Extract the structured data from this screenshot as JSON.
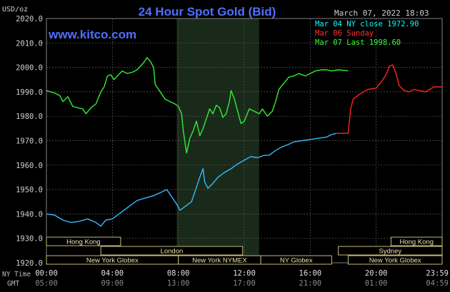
{
  "chart_data": {
    "type": "line",
    "title": "24 Hour Spot Gold (Bid)",
    "unit_label": "USD/oz",
    "date_label": "March 07, 2022 18:03",
    "watermark": "www.kitco.com",
    "ylim": [
      1920,
      2020
    ],
    "yticks": [
      "2020.0",
      "2010.0",
      "2000.0",
      "1990.0",
      "1980.0",
      "1970.0",
      "1960.0",
      "1950.0",
      "1940.0",
      "1930.0",
      "1920.0"
    ],
    "x_range_hours": [
      0,
      24
    ],
    "ny_time_label": "NY Time",
    "gmt_label": "GMT",
    "ny_time_ticks": [
      "00:00",
      "04:00",
      "08:00",
      "12:00",
      "16:00",
      "20:00",
      "23:59"
    ],
    "gmt_ticks": [
      "05:00",
      "09:00",
      "13:00",
      "17:00",
      "21:00",
      "01:00",
      "04:59"
    ],
    "shaded_range_hours": [
      7.9,
      12.9
    ],
    "legend": [
      {
        "label": "Mar 04 NY close 1972.90",
        "color": "#00ffff"
      },
      {
        "label": "Mar 06 Sunday",
        "color": "#ff3030"
      },
      {
        "label": "Mar 07 Last 1998.60",
        "color": "#33ff33"
      }
    ],
    "series": [
      {
        "name": "Mar 04 NY close 1972.90",
        "color": "#33bbff",
        "points": [
          [
            0,
            1940
          ],
          [
            0.5,
            1939.5
          ],
          [
            1,
            1937.5
          ],
          [
            1.5,
            1936.5
          ],
          [
            2,
            1937
          ],
          [
            2.5,
            1938
          ],
          [
            3,
            1936.5
          ],
          [
            3.3,
            1935
          ],
          [
            3.6,
            1937.5
          ],
          [
            4,
            1938
          ],
          [
            4.5,
            1940.5
          ],
          [
            5,
            1943
          ],
          [
            5.5,
            1945.5
          ],
          [
            6,
            1946.5
          ],
          [
            6.5,
            1947.5
          ],
          [
            7,
            1949
          ],
          [
            7.3,
            1950
          ],
          [
            7.6,
            1947
          ],
          [
            7.9,
            1944
          ],
          [
            8.1,
            1941.5
          ],
          [
            8.4,
            1943
          ],
          [
            8.8,
            1945
          ],
          [
            9.1,
            1951
          ],
          [
            9.3,
            1955
          ],
          [
            9.5,
            1958.5
          ],
          [
            9.6,
            1953
          ],
          [
            9.8,
            1950.5
          ],
          [
            10.1,
            1952.5
          ],
          [
            10.4,
            1955
          ],
          [
            10.8,
            1957
          ],
          [
            11.2,
            1958.5
          ],
          [
            11.6,
            1960.5
          ],
          [
            12,
            1962
          ],
          [
            12.4,
            1963.5
          ],
          [
            12.8,
            1963
          ],
          [
            13.2,
            1964
          ],
          [
            13.5,
            1964
          ],
          [
            13.9,
            1966
          ],
          [
            14.3,
            1967.5
          ],
          [
            14.7,
            1968.5
          ],
          [
            15,
            1969.5
          ],
          [
            15.5,
            1970
          ],
          [
            16,
            1970.5
          ],
          [
            16.5,
            1971
          ],
          [
            17,
            1971.5
          ],
          [
            17.3,
            1972.5
          ],
          [
            17.6,
            1973
          ]
        ]
      },
      {
        "name": "Mar 06 Sunday",
        "color": "#ff2222",
        "points": [
          [
            17.6,
            1973
          ],
          [
            18.3,
            1973
          ],
          [
            18.45,
            1983
          ],
          [
            18.6,
            1987
          ],
          [
            19,
            1989
          ],
          [
            19.5,
            1991
          ],
          [
            20,
            1991.5
          ],
          [
            20.3,
            1994
          ],
          [
            20.6,
            1997
          ],
          [
            20.8,
            2000.5
          ],
          [
            21,
            2001
          ],
          [
            21.2,
            1997.5
          ],
          [
            21.4,
            1992.5
          ],
          [
            21.7,
            1990.5
          ],
          [
            22,
            1990
          ],
          [
            22.3,
            1991
          ],
          [
            22.6,
            1990.5
          ],
          [
            23,
            1990
          ],
          [
            23.5,
            1992
          ],
          [
            23.99,
            1992
          ]
        ]
      },
      {
        "name": "Mar 07 Last 1998.60",
        "color": "#33ee33",
        "points": [
          [
            0,
            1990.5
          ],
          [
            0.5,
            1989.5
          ],
          [
            0.8,
            1988.5
          ],
          [
            1,
            1986
          ],
          [
            1.3,
            1988
          ],
          [
            1.6,
            1984
          ],
          [
            2.2,
            1983
          ],
          [
            2.4,
            1981
          ],
          [
            2.7,
            1983.5
          ],
          [
            3,
            1985
          ],
          [
            3.3,
            1990
          ],
          [
            3.5,
            1992
          ],
          [
            3.7,
            1996.5
          ],
          [
            3.9,
            1997
          ],
          [
            4.1,
            1995
          ],
          [
            4.3,
            1996.5
          ],
          [
            4.6,
            1998.5
          ],
          [
            4.9,
            1997.5
          ],
          [
            5.2,
            1998
          ],
          [
            5.5,
            1999
          ],
          [
            5.7,
            2000.5
          ],
          [
            5.9,
            2002
          ],
          [
            6.1,
            2004
          ],
          [
            6.3,
            2002.5
          ],
          [
            6.5,
            2000
          ],
          [
            6.6,
            1993
          ],
          [
            6.8,
            1991
          ],
          [
            7,
            1989
          ],
          [
            7.2,
            1987
          ],
          [
            7.5,
            1986
          ],
          [
            7.8,
            1985
          ],
          [
            8,
            1984
          ],
          [
            8.2,
            1981
          ],
          [
            8.3,
            1974
          ],
          [
            8.5,
            1965
          ],
          [
            8.7,
            1971
          ],
          [
            8.9,
            1974
          ],
          [
            9.1,
            1978
          ],
          [
            9.3,
            1972
          ],
          [
            9.5,
            1975
          ],
          [
            9.7,
            1979
          ],
          [
            9.9,
            1983
          ],
          [
            10.1,
            1981
          ],
          [
            10.3,
            1984.5
          ],
          [
            10.5,
            1983.5
          ],
          [
            10.7,
            1979.5
          ],
          [
            10.9,
            1981
          ],
          [
            11.1,
            1986
          ],
          [
            11.2,
            1990.5
          ],
          [
            11.4,
            1987
          ],
          [
            11.6,
            1982
          ],
          [
            11.8,
            1977
          ],
          [
            12,
            1978
          ],
          [
            12.3,
            1983
          ],
          [
            12.6,
            1982
          ],
          [
            12.9,
            1981
          ],
          [
            13.1,
            1983
          ],
          [
            13.4,
            1980
          ],
          [
            13.7,
            1982
          ],
          [
            13.9,
            1986
          ],
          [
            14.1,
            1991
          ],
          [
            14.4,
            1993.5
          ],
          [
            14.7,
            1996
          ],
          [
            15,
            1996.5
          ],
          [
            15.3,
            1997.5
          ],
          [
            15.7,
            1996.5
          ],
          [
            16,
            1997.5
          ],
          [
            16.3,
            1998.5
          ],
          [
            16.7,
            1999
          ],
          [
            17,
            1999
          ],
          [
            17.3,
            1998.5
          ],
          [
            17.7,
            1999
          ],
          [
            18.3,
            1998.6
          ]
        ]
      }
    ],
    "session_rows": [
      [
        {
          "label": "Hong Kong",
          "start": 0,
          "end": 4.5
        },
        {
          "label": "Hong Kong",
          "start": 20.9,
          "end": 24
        }
      ],
      [
        {
          "label": "London",
          "start": 3.3,
          "end": 11.9
        },
        {
          "label": "Sydney",
          "start": 17.7,
          "end": 24
        }
      ],
      [
        {
          "label": "New York Globex",
          "start": 0,
          "end": 8
        },
        {
          "label": "New York NYMEX",
          "start": 8,
          "end": 13
        },
        {
          "label": "NY Globex",
          "start": 13,
          "end": 17.3
        },
        {
          "label": "New York Globex",
          "start": 18.3,
          "end": 24
        }
      ]
    ]
  }
}
